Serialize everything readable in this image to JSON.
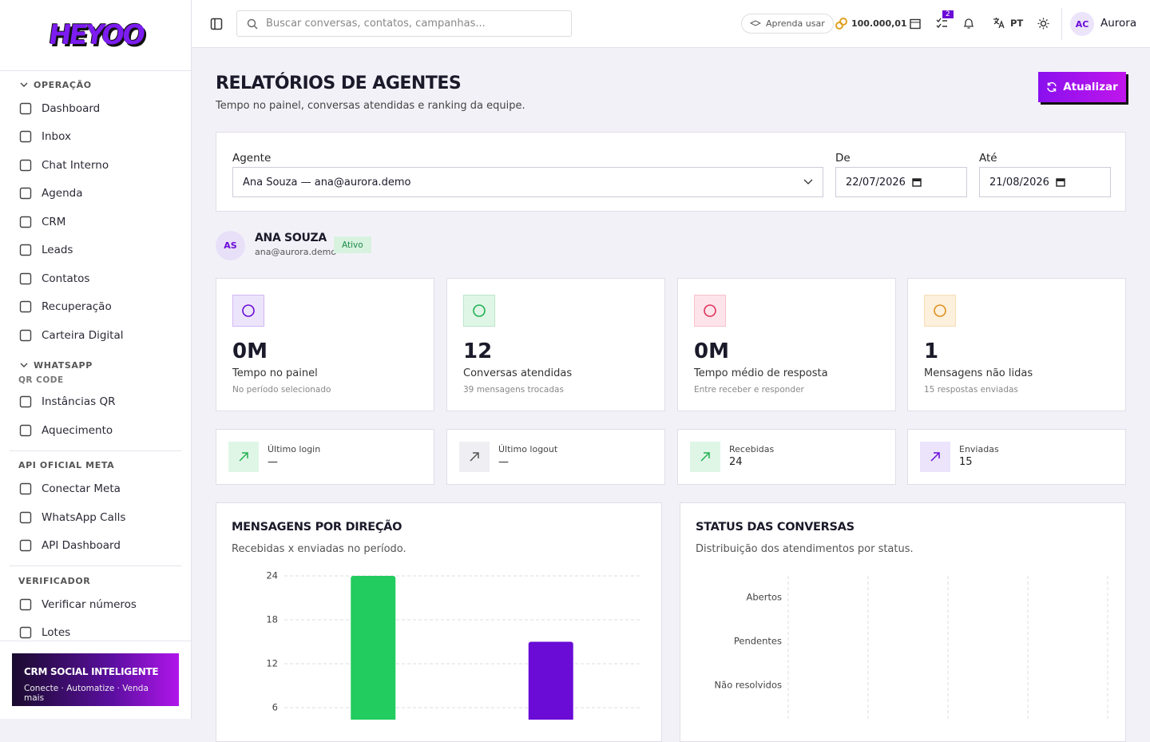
{
  "sidebar": {
    "logo": "HEYOO",
    "sections": [
      {
        "title": "OPERAÇÃO",
        "items": [
          "Dashboard",
          "Inbox",
          "Chat Interno",
          "Agenda",
          "CRM",
          "Leads",
          "Contatos",
          "Recuperação",
          "Carteira Digital"
        ]
      },
      {
        "title": "WHATSAPP",
        "subtitle": "QR CODE",
        "items": [
          "Instâncias QR",
          "Aquecimento"
        ]
      },
      {
        "title": "API OFICIAL META",
        "items": [
          "Conectar Meta",
          "WhatsApp Calls",
          "API Dashboard"
        ]
      },
      {
        "title": "VERIFICADOR",
        "items": [
          "Verificar números",
          "Lotes"
        ]
      }
    ],
    "promo": {
      "title": "CRM SOCIAL INTELIGENTE",
      "text": "Conecte · Automatize · Venda mais"
    }
  },
  "topbar": {
    "search_placeholder": "Buscar conversas, contatos, campanhas...",
    "learn": "Aprenda usar",
    "credits": "100.000,01",
    "tasks_badge": "2",
    "language": "PT",
    "user_initials": "AC",
    "user_name": "Aurora"
  },
  "header": {
    "title": "RELATÓRIOS DE AGENTES",
    "subtitle": "Tempo no painel, conversas atendidas e ranking da equipe.",
    "refresh_button": "Atualizar"
  },
  "filters": {
    "agent_label": "Agente",
    "agent_value": "Ana Souza — ana@aurora.demo",
    "from_label": "De",
    "from_value": "22/07/2026",
    "to_label": "Até",
    "to_value": "21/08/2026"
  },
  "agent": {
    "initials": "AS",
    "name": "ANA SOUZA",
    "email": "ana@aurora.demo",
    "status": "Ativo"
  },
  "stats": [
    {
      "value": "0M",
      "label": "Tempo no painel",
      "note": "No período selecionado"
    },
    {
      "value": "12",
      "label": "Conversas atendidas",
      "note": "39 mensagens trocadas"
    },
    {
      "value": "0M",
      "label": "Tempo médio de resposta",
      "note": "Entre receber e responder"
    },
    {
      "value": "1",
      "label": "Mensagens não lidas",
      "note": "15 respostas enviadas"
    }
  ],
  "mini_stats": [
    {
      "label": "Último login",
      "value": "—"
    },
    {
      "label": "Último logout",
      "value": "—"
    },
    {
      "label": "Recebidas",
      "value": "24"
    },
    {
      "label": "Enviadas",
      "value": "15"
    }
  ],
  "chart_data": [
    {
      "type": "bar",
      "title": "MENSAGENS POR DIREÇÃO",
      "subtitle": "Recebidas x enviadas no período.",
      "categories": [
        null,
        null
      ],
      "values": [
        24,
        15
      ],
      "colors": [
        "#22cc5e",
        "#6a0bd6"
      ],
      "ylim": [
        0,
        24
      ],
      "yticks": [
        6,
        12,
        18,
        24
      ],
      "grid": true
    },
    {
      "type": "barh",
      "title": "STATUS DAS CONVERSAS",
      "subtitle": "Distribuição dos atendimentos por status.",
      "categories": [
        "Abertos",
        "Pendentes",
        "Não resolvidos"
      ],
      "grid": true
    }
  ]
}
